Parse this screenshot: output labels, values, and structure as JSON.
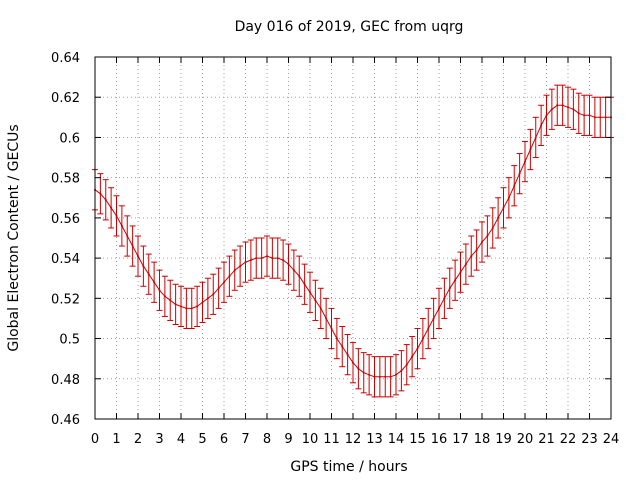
{
  "chart_data": {
    "type": "line",
    "title": "Day 016 of 2019, GEC from uqrg",
    "xlabel": "GPS time / hours",
    "ylabel": "Global Electron Content / GECUs",
    "xlim": [
      0,
      24
    ],
    "ylim": [
      0.46,
      0.64
    ],
    "xticks": [
      "0",
      "1",
      "2",
      "3",
      "4",
      "5",
      "6",
      "7",
      "8",
      "9",
      "10",
      "11",
      "12",
      "13",
      "14",
      "15",
      "16",
      "17",
      "18",
      "19",
      "20",
      "21",
      "22",
      "23",
      "24"
    ],
    "yticks": [
      "0.46",
      "0.48",
      "0.5",
      "0.52",
      "0.54",
      "0.56",
      "0.58",
      "0.6",
      "0.62",
      "0.64"
    ],
    "grid": true,
    "series_color": "#cc0000",
    "error_half_width": 0.01,
    "series": [
      {
        "name": "GEC",
        "x": [
          0,
          0.25,
          0.5,
          0.75,
          1,
          1.25,
          1.5,
          1.75,
          2,
          2.25,
          2.5,
          2.75,
          3,
          3.25,
          3.5,
          3.75,
          4,
          4.25,
          4.5,
          4.75,
          5,
          5.25,
          5.5,
          5.75,
          6,
          6.25,
          6.5,
          6.75,
          7,
          7.25,
          7.5,
          7.75,
          8,
          8.25,
          8.5,
          8.75,
          9,
          9.25,
          9.5,
          9.75,
          10,
          10.25,
          10.5,
          10.75,
          11,
          11.25,
          11.5,
          11.75,
          12,
          12.25,
          12.5,
          12.75,
          13,
          13.25,
          13.5,
          13.75,
          14,
          14.25,
          14.5,
          14.75,
          15,
          15.25,
          15.5,
          15.75,
          16,
          16.25,
          16.5,
          16.75,
          17,
          17.25,
          17.5,
          17.75,
          18,
          18.25,
          18.5,
          18.75,
          19,
          19.25,
          19.5,
          19.75,
          20,
          20.25,
          20.5,
          20.75,
          21,
          21.25,
          21.5,
          21.75,
          22,
          22.25,
          22.5,
          22.75,
          23,
          23.25,
          23.5,
          23.75,
          24
        ],
        "y": [
          0.574,
          0.572,
          0.569,
          0.565,
          0.561,
          0.556,
          0.551,
          0.546,
          0.541,
          0.536,
          0.532,
          0.528,
          0.524,
          0.521,
          0.519,
          0.517,
          0.516,
          0.515,
          0.515,
          0.516,
          0.518,
          0.52,
          0.522,
          0.525,
          0.528,
          0.531,
          0.534,
          0.536,
          0.538,
          0.539,
          0.54,
          0.54,
          0.541,
          0.54,
          0.54,
          0.539,
          0.537,
          0.534,
          0.531,
          0.527,
          0.523,
          0.519,
          0.515,
          0.51,
          0.505,
          0.5,
          0.496,
          0.492,
          0.488,
          0.485,
          0.483,
          0.482,
          0.481,
          0.481,
          0.481,
          0.481,
          0.482,
          0.484,
          0.487,
          0.491,
          0.495,
          0.5,
          0.505,
          0.51,
          0.515,
          0.52,
          0.525,
          0.529,
          0.533,
          0.537,
          0.541,
          0.544,
          0.548,
          0.551,
          0.555,
          0.56,
          0.565,
          0.57,
          0.576,
          0.582,
          0.588,
          0.594,
          0.6,
          0.606,
          0.611,
          0.614,
          0.616,
          0.616,
          0.615,
          0.614,
          0.612,
          0.611,
          0.611,
          0.61,
          0.61,
          0.61,
          0.61
        ]
      }
    ]
  }
}
